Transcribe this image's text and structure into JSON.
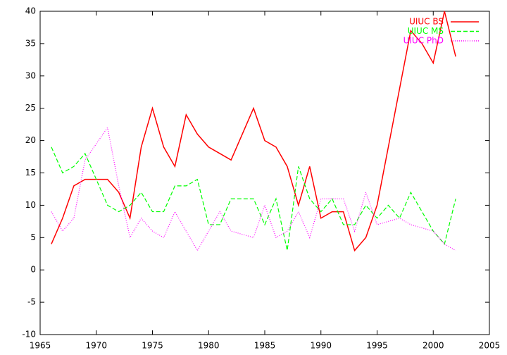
{
  "chart_data": {
    "type": "line",
    "x": [
      1966,
      1967,
      1968,
      1969,
      1970,
      1971,
      1972,
      1973,
      1974,
      1975,
      1976,
      1977,
      1978,
      1979,
      1980,
      1981,
      1982,
      1983,
      1984,
      1985,
      1986,
      1987,
      1988,
      1989,
      1990,
      1991,
      1992,
      1993,
      1994,
      1995,
      1996,
      1997,
      1998,
      1999,
      2000,
      2001,
      2002
    ],
    "series": [
      {
        "name": "UIUC BS",
        "color": "#ff0000",
        "dash": "solid",
        "values": [
          4,
          8,
          13,
          14,
          14,
          14,
          12,
          8,
          19,
          25,
          19,
          16,
          24,
          21,
          19,
          18,
          17,
          21,
          25,
          20,
          19,
          16,
          10,
          16,
          8,
          9,
          9,
          3,
          5,
          10,
          19,
          28,
          37,
          35,
          32,
          40,
          33
        ]
      },
      {
        "name": "UIUC MS",
        "color": "#00ff00",
        "dash": "dashed",
        "values": [
          19,
          15,
          16,
          18,
          14,
          10,
          9,
          10,
          12,
          9,
          9,
          13,
          13,
          14,
          7,
          7,
          11,
          11,
          11,
          7,
          11,
          3,
          16,
          11,
          9,
          11,
          7,
          7,
          10,
          8,
          10,
          8,
          12,
          9,
          6,
          4,
          11
        ]
      },
      {
        "name": "UIUC PhD",
        "color": "#ff00ff",
        "dash": "dotted",
        "values": [
          9,
          6,
          8,
          17,
          19.5,
          22,
          13,
          5,
          8,
          6,
          5,
          9,
          6,
          3,
          6,
          9,
          6,
          5.5,
          5,
          10,
          5,
          6,
          9,
          5,
          11,
          11,
          11,
          6,
          12,
          7,
          7.5,
          8,
          7,
          6.5,
          6,
          4,
          3
        ]
      }
    ],
    "xlim": [
      1965,
      2005
    ],
    "xticks": [
      1965,
      1970,
      1975,
      1980,
      1985,
      1990,
      1995,
      2000,
      2005
    ],
    "ylim": [
      -10,
      40
    ],
    "yticks": [
      -10,
      -5,
      0,
      5,
      10,
      15,
      20,
      25,
      30,
      35,
      40
    ],
    "legend": "top right",
    "grid": false
  }
}
